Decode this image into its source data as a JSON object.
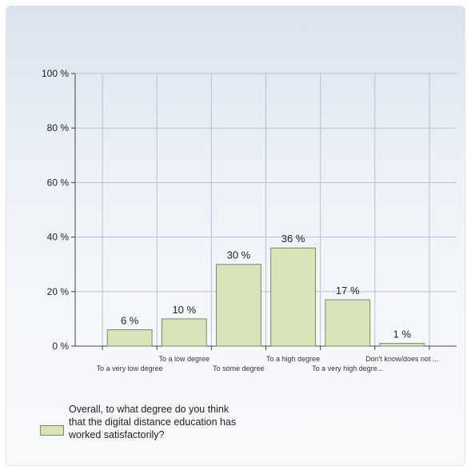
{
  "colors": {
    "bar_fill": "#d6e4b7",
    "bar_stroke": "#7a8a6a",
    "grid": "#b8c2cf",
    "axis": "#444444"
  },
  "chart_data": {
    "type": "bar",
    "categories": [
      "To a very low degree",
      "To a low degree",
      "To some degree",
      "To a high degree",
      "To a very high degre...",
      "Don't know/does not ..."
    ],
    "series": [
      {
        "name": "Overall, to what degree do you think that the digital distance education has worked satisfactorily?",
        "values": [
          6,
          10,
          30,
          36,
          17,
          1
        ]
      }
    ],
    "value_labels": [
      "6 %",
      "10 %",
      "30 %",
      "36 %",
      "17 %",
      "1 %"
    ],
    "ylim": [
      0,
      100
    ],
    "yticks": [
      0,
      20,
      40,
      60,
      80,
      100
    ],
    "ytick_labels": [
      "0 %",
      "20 %",
      "40 %",
      "60 %",
      "80 %",
      "100 %"
    ],
    "grid": true,
    "legend_position": "bottom-left",
    "title": "",
    "xlabel": "",
    "ylabel": ""
  }
}
